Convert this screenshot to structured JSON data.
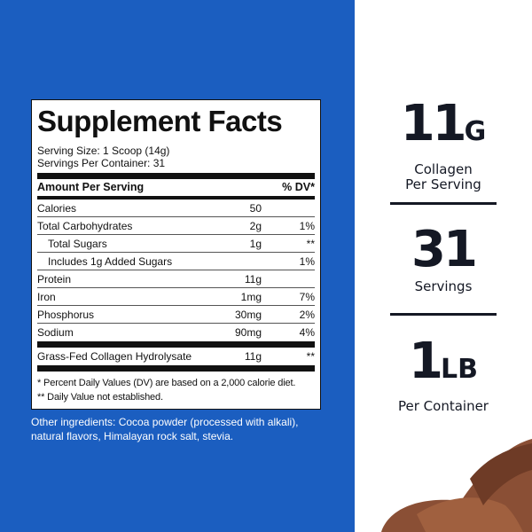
{
  "label": {
    "title": "Supplement Facts",
    "serving_size": "Serving Size: 1 Scoop (14g)",
    "servings_per_container": "Servings Per Container: 31",
    "header_amount": "Amount Per Serving",
    "header_dv": "% DV*",
    "rows": [
      {
        "name": "Calories",
        "amount": "50",
        "dv": ""
      },
      {
        "name": "Total Carbohydrates",
        "amount": "2g",
        "dv": "1%"
      },
      {
        "name": "Total Sugars",
        "amount": "1g",
        "dv": "**"
      },
      {
        "name": "Includes 1g Added Sugars",
        "amount": "",
        "dv": "1%"
      },
      {
        "name": "Protein",
        "amount": "11g",
        "dv": ""
      },
      {
        "name": "Iron",
        "amount": "1mg",
        "dv": "7%"
      },
      {
        "name": "Phosphorus",
        "amount": "30mg",
        "dv": "2%"
      },
      {
        "name": "Sodium",
        "amount": "90mg",
        "dv": "4%"
      }
    ],
    "ingredient": {
      "name": "Grass-Fed Collagen Hydrolysate",
      "amount": "11g",
      "dv": "**"
    },
    "footnote1": "* Percent Daily Values (DV) are based on a 2,000 calorie diet.",
    "footnote2": "** Daily Value not established."
  },
  "other_ingredients": "Other ingredients: Cocoa powder (processed with alkali), natural flavors, Himalayan rock salt, stevia.",
  "stats": [
    {
      "value": "11",
      "unit": "G",
      "caption1": "Collagen",
      "caption2": "Per Serving"
    },
    {
      "value": "31",
      "unit": "",
      "caption1": "Servings",
      "caption2": ""
    },
    {
      "value": "1",
      "unit": "LB",
      "caption1": "Per Container",
      "caption2": ""
    }
  ],
  "colors": {
    "blue": "#1b5ec0",
    "text": "#141824",
    "chocolate": "#8a4f35"
  }
}
